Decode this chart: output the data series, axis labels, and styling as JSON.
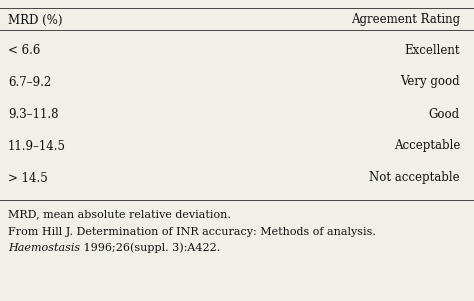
{
  "col1_header": "MRD (%)",
  "col2_header": "Agreement Rating",
  "rows": [
    [
      "< 6.6",
      "Excellent"
    ],
    [
      "6.7–9.2",
      "Very good"
    ],
    [
      "9.3–11.8",
      "Good"
    ],
    [
      "11.9–14.5",
      "Acceptable"
    ],
    [
      "> 14.5",
      "Not acceptable"
    ]
  ],
  "footnote1": "MRD, mean absolute relative deviation.",
  "footnote2": "From Hill J. Determination of INR accuracy: Methods of analysis.",
  "footnote3_italic": "Haemostasis",
  "footnote3_normal": " 1996;26(suppl. 3):A422.",
  "bg_color": "#f0efe8",
  "text_color": "#111111",
  "font_size": 8.5,
  "header_font_size": 8.5
}
